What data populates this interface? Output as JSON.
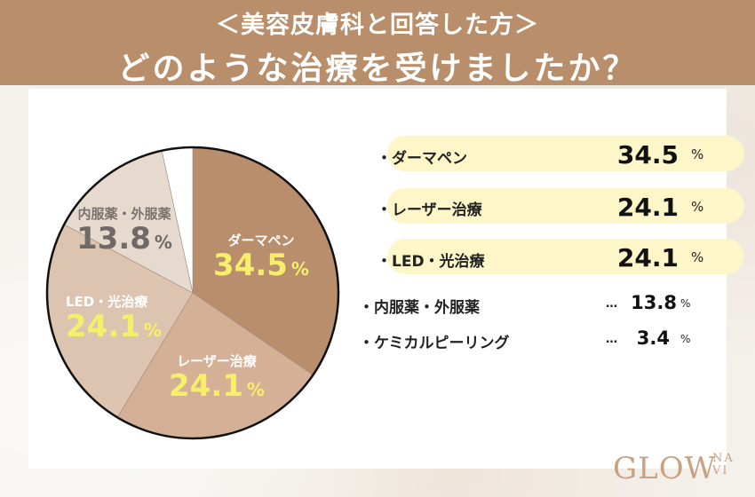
{
  "header": {
    "subtitle": "＜美容皮膚科と回答した方＞",
    "title": "どのような治療を受けましたか？",
    "background": "#b88e6b"
  },
  "chart_data": {
    "type": "pie",
    "title": "どのような治療を受けましたか？",
    "subtitle": "＜美容皮膚科と回答した方＞",
    "unit": "%",
    "start_angle": "top",
    "direction": "clockwise",
    "categories": [
      "ダーマペン",
      "レーザー治療",
      "LED・光治療",
      "内服薬・外服薬",
      "ケミカルピーリング"
    ],
    "values": [
      34.5,
      24.1,
      24.1,
      13.8,
      3.4
    ],
    "colors": [
      "#b88e6d",
      "#d4b196",
      "#dcc4b0",
      "#e6d9ce",
      "#ffffff"
    ],
    "slice_labels": [
      {
        "name": "ダーマペン",
        "value": "34.5",
        "unit": "%"
      },
      {
        "name": "レーザー治療",
        "value": "24.1",
        "unit": "%"
      },
      {
        "name": "LED・光治療",
        "value": "24.1",
        "unit": "%"
      },
      {
        "name": "内服薬・外服薬",
        "value": "13.8",
        "unit": "%"
      },
      {
        "name": "ケミカルピーリング",
        "value": "3.4",
        "unit": "%"
      }
    ],
    "legend_position": "right"
  },
  "legend": {
    "highlighted": [
      {
        "label": "・ダーマペン",
        "value": "34.5",
        "unit": "%"
      },
      {
        "label": "・レーザー治療",
        "value": "24.1",
        "unit": "%"
      },
      {
        "label": "・LED・光治療",
        "value": "24.1",
        "unit": "%"
      }
    ],
    "others": [
      {
        "label": "・内服薬・外服薬",
        "dots": "…",
        "value": "13.8",
        "unit": "%"
      },
      {
        "label": "・ケミカルピーリング",
        "dots": "…",
        "value": "3.4",
        "unit": "%"
      }
    ],
    "pill_color": "#fcf6c8"
  },
  "logo": {
    "main": "GLOW",
    "small_top": "NA",
    "small_bottom": "VI"
  }
}
